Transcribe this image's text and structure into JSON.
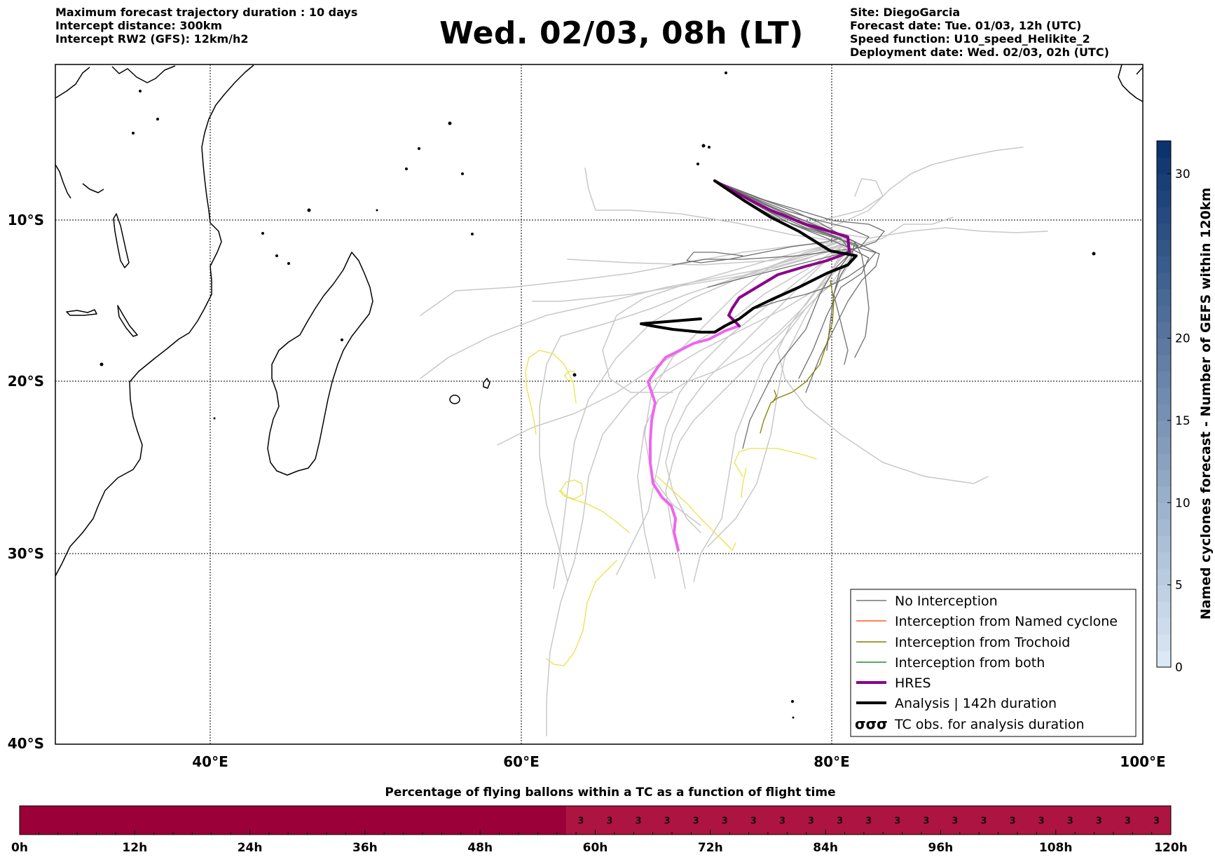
{
  "header": {
    "left_lines": [
      "Maximum forecast trajectory duration : 10 days",
      "Intercept distance: 300km",
      "Intercept RW2 (GFS):  12km/h2"
    ],
    "title": "Wed. 02/03, 08h (LT)",
    "right_lines": [
      "Site: DiegoGarcia",
      "Forecast date: Tue. 01/03, 12h (UTC)",
      "Speed function: U10_speed_Helikite_2",
      "Deployment date: Wed. 02/03, 02h (UTC)"
    ]
  },
  "map": {
    "lon_ticks": [
      "40°E",
      "60°E",
      "80°E",
      "100°E"
    ],
    "lat_ticks": [
      "10°S",
      "20°S",
      "30°S",
      "40°S"
    ],
    "legend": [
      {
        "label": "No Interception",
        "color": "#777777",
        "style": "thin"
      },
      {
        "label": "Interception from Named cyclone",
        "color": "#ff5a1f",
        "style": "thin"
      },
      {
        "label": "Interception from Trochoid",
        "color": "#808000",
        "style": "thin"
      },
      {
        "label": "Interception from both",
        "color": "#2a8a2a",
        "style": "thin"
      },
      {
        "label": "HRES",
        "color": "#8b008b",
        "style": "thick"
      },
      {
        "label": "Analysis | 142h duration",
        "color": "#000000",
        "style": "thick"
      },
      {
        "label": "TC obs. for analysis duration",
        "color": "#000000",
        "style": "symbol",
        "symbol": "σσσ"
      }
    ]
  },
  "colorbar": {
    "label": "Named cyclones forecast - Number of GEFS within 120km",
    "ticks": [
      "0",
      "5",
      "10",
      "15",
      "20",
      "30"
    ],
    "tick_values": [
      0,
      5,
      10,
      15,
      20,
      30
    ],
    "range": [
      0,
      32
    ],
    "color_low": "#deebf7",
    "color_high": "#08306b"
  },
  "timebar": {
    "title": "Percentage of flying ballons within a TC as a function of flight time",
    "ticks": [
      "0h",
      "12h",
      "24h",
      "36h",
      "48h",
      "60h",
      "72h",
      "84h",
      "96h",
      "108h",
      "120h"
    ],
    "first_segment_end_h": 57,
    "cell_value": "3",
    "cells_count": 21,
    "color_empty": "#9b0038",
    "color_filled": "#ae1441"
  }
}
